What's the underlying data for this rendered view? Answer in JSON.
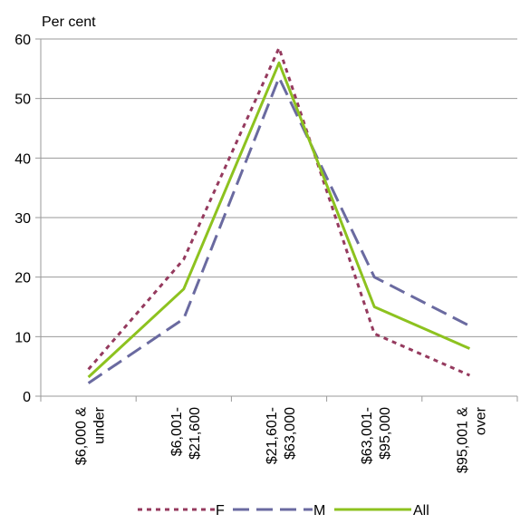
{
  "chart_data": {
    "type": "line",
    "ylabel": "Per cent",
    "categories": [
      "$6,000 & under",
      "$6,001-$21,600",
      "$21,601-$63,000",
      "$63,001-$95,000",
      "$95,001 & over"
    ],
    "category_lines": [
      [
        "$6,000 &",
        "under"
      ],
      [
        "$6,001-",
        "$21,600"
      ],
      [
        "$21,601-",
        "$63,000"
      ],
      [
        "$63,001-",
        "$95,000"
      ],
      [
        "$95,001 &",
        "over"
      ]
    ],
    "ylim": [
      0,
      60
    ],
    "yticks": [
      "0",
      "10",
      "20",
      "30",
      "40",
      "50",
      "60"
    ],
    "grid": true,
    "legend_position": "bottom",
    "series": [
      {
        "name": "F",
        "values": [
          4.5,
          23,
          58.5,
          10.5,
          3.5
        ],
        "color": "#953a5e",
        "style": "dotted"
      },
      {
        "name": "M",
        "values": [
          2.2,
          13,
          53.5,
          20,
          11.8
        ],
        "color": "#6a6aa0",
        "style": "dashed"
      },
      {
        "name": "All",
        "values": [
          3.2,
          18,
          56,
          15,
          8
        ],
        "color": "#8dc21f",
        "style": "solid"
      }
    ]
  }
}
